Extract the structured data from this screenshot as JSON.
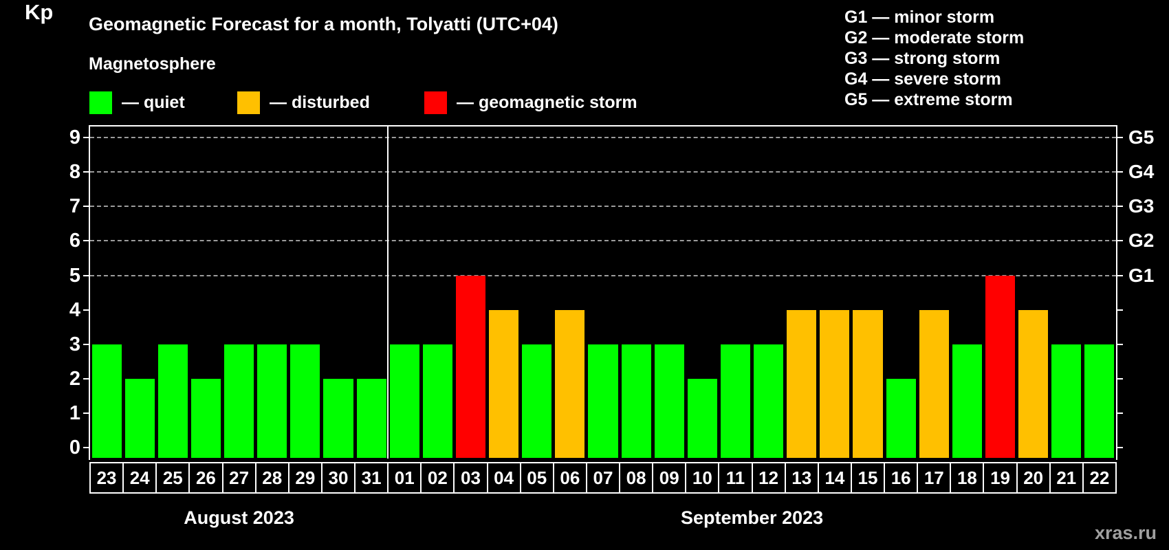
{
  "title": "Geomagnetic Forecast for a month, Tolyatti (UTC+04)",
  "legend": {
    "heading": "Magnetosphere",
    "items": [
      {
        "key": "quiet",
        "label": "— quiet"
      },
      {
        "key": "disturbed",
        "label": "— disturbed"
      },
      {
        "key": "storm",
        "label": "— geomagnetic storm"
      }
    ]
  },
  "storm_scale_legend": {
    "lines": [
      "G1 — minor storm",
      "G2 — moderate storm",
      "G3 — strong storm",
      "G4 — severe storm",
      "G5 — extreme storm"
    ]
  },
  "colors": {
    "quiet": "#00ff00",
    "disturbed": "#ffc000",
    "storm": "#ff0000",
    "grid": "#9c9c9c",
    "axis": "#ffffff",
    "watermark": "#a0a0a0"
  },
  "watermark": "xras.ru",
  "chart_data": {
    "type": "bar",
    "ylabel": "Kp",
    "y_ticks": [
      0,
      1,
      2,
      3,
      4,
      5,
      6,
      7,
      8,
      9
    ],
    "grid_levels": [
      5,
      6,
      7,
      8,
      9
    ],
    "right_axis_labels": [
      {
        "level": 5,
        "label": "G1"
      },
      {
        "level": 6,
        "label": "G2"
      },
      {
        "level": 7,
        "label": "G3"
      },
      {
        "level": 8,
        "label": "G4"
      },
      {
        "level": 9,
        "label": "G5"
      }
    ],
    "ylim": [
      -0.3,
      9.35
    ],
    "grid": true,
    "months": [
      {
        "label": "August 2023",
        "days": 9
      },
      {
        "label": "September 2023",
        "days": 22
      }
    ],
    "bars": [
      {
        "day": "23",
        "kp": 3,
        "status": "quiet"
      },
      {
        "day": "24",
        "kp": 2,
        "status": "quiet"
      },
      {
        "day": "25",
        "kp": 3,
        "status": "quiet"
      },
      {
        "day": "26",
        "kp": 2,
        "status": "quiet"
      },
      {
        "day": "27",
        "kp": 3,
        "status": "quiet"
      },
      {
        "day": "28",
        "kp": 3,
        "status": "quiet"
      },
      {
        "day": "29",
        "kp": 3,
        "status": "quiet"
      },
      {
        "day": "30",
        "kp": 2,
        "status": "quiet"
      },
      {
        "day": "31",
        "kp": 2,
        "status": "quiet"
      },
      {
        "day": "01",
        "kp": 3,
        "status": "quiet"
      },
      {
        "day": "02",
        "kp": 3,
        "status": "quiet"
      },
      {
        "day": "03",
        "kp": 5,
        "status": "storm"
      },
      {
        "day": "04",
        "kp": 4,
        "status": "disturbed"
      },
      {
        "day": "05",
        "kp": 3,
        "status": "quiet"
      },
      {
        "day": "06",
        "kp": 4,
        "status": "disturbed"
      },
      {
        "day": "07",
        "kp": 3,
        "status": "quiet"
      },
      {
        "day": "08",
        "kp": 3,
        "status": "quiet"
      },
      {
        "day": "09",
        "kp": 3,
        "status": "quiet"
      },
      {
        "day": "10",
        "kp": 2,
        "status": "quiet"
      },
      {
        "day": "11",
        "kp": 3,
        "status": "quiet"
      },
      {
        "day": "12",
        "kp": 3,
        "status": "quiet"
      },
      {
        "day": "13",
        "kp": 4,
        "status": "disturbed"
      },
      {
        "day": "14",
        "kp": 4,
        "status": "disturbed"
      },
      {
        "day": "15",
        "kp": 4,
        "status": "disturbed"
      },
      {
        "day": "16",
        "kp": 2,
        "status": "quiet"
      },
      {
        "day": "17",
        "kp": 4,
        "status": "disturbed"
      },
      {
        "day": "18",
        "kp": 3,
        "status": "quiet"
      },
      {
        "day": "19",
        "kp": 5,
        "status": "storm"
      },
      {
        "day": "20",
        "kp": 4,
        "status": "disturbed"
      },
      {
        "day": "21",
        "kp": 3,
        "status": "quiet"
      },
      {
        "day": "22",
        "kp": 3,
        "status": "quiet"
      }
    ]
  }
}
